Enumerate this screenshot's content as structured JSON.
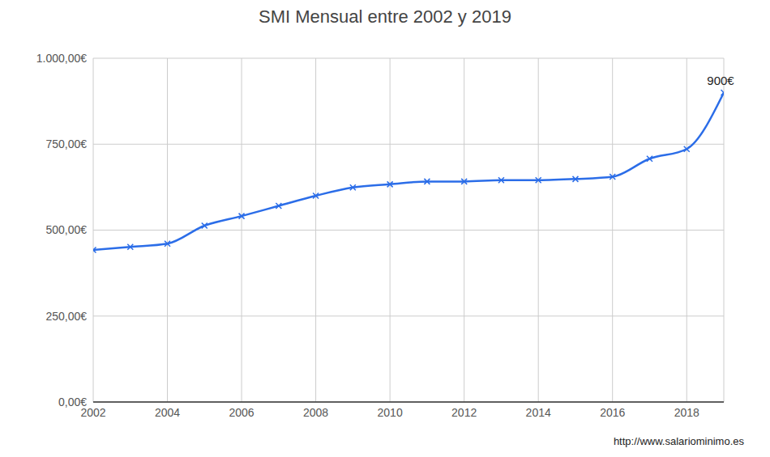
{
  "chart_data": {
    "type": "line",
    "title": "SMI Mensual entre 2002 y 2019",
    "source": "http://www.salariominimo.es",
    "x": [
      2002,
      2003,
      2004,
      2005,
      2006,
      2007,
      2008,
      2009,
      2010,
      2011,
      2012,
      2013,
      2014,
      2015,
      2016,
      2017,
      2018,
      2019
    ],
    "values": [
      442.2,
      451.2,
      460.5,
      513.0,
      540.9,
      570.6,
      600.0,
      624.0,
      633.3,
      641.4,
      641.4,
      645.3,
      645.3,
      648.6,
      655.2,
      707.7,
      735.9,
      900.0
    ],
    "color": "#2b6de8",
    "marker": "x",
    "xlim": [
      2002,
      2019
    ],
    "xticks": [
      2002,
      2004,
      2006,
      2008,
      2010,
      2012,
      2014,
      2016,
      2018
    ],
    "ylim": [
      0,
      1000
    ],
    "yticks": [
      {
        "value": 0,
        "label": "0,00€"
      },
      {
        "value": 250,
        "label": "250,00€"
      },
      {
        "value": 500,
        "label": "500,00€"
      },
      {
        "value": 750,
        "label": "750,00€"
      },
      {
        "value": 1000,
        "label": "1.000,00€"
      }
    ],
    "grid": true,
    "annotations": [
      {
        "x": 2019,
        "y": 900,
        "text": "900€"
      }
    ]
  }
}
